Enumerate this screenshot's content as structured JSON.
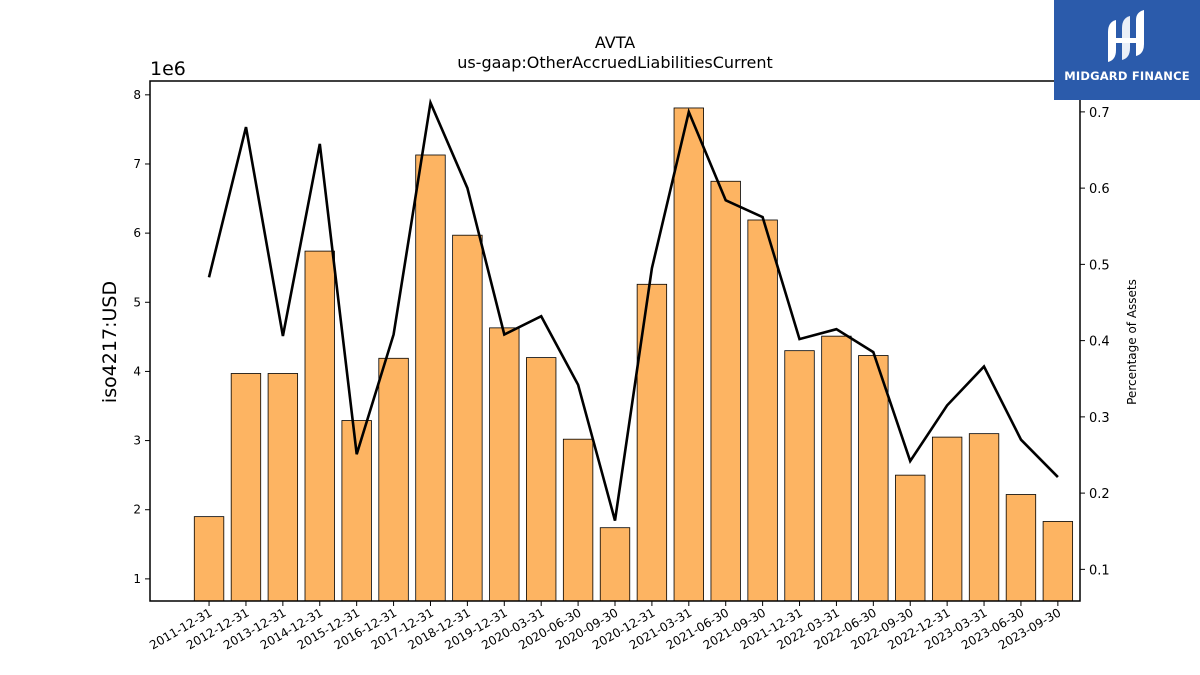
{
  "chart_data": {
    "type": "bar",
    "title": "AVTA",
    "subtitle": "us-gaap:OtherAccruedLiabilitiesCurrent",
    "ylabel": "iso4217:USD",
    "y_offset_label": "1e6",
    "y2label": "Percentage of Assets",
    "categories": [
      "2011-12-31",
      "2012-12-31",
      "2013-12-31",
      "2014-12-31",
      "2015-12-31",
      "2016-12-31",
      "2017-12-31",
      "2018-12-31",
      "2019-12-31",
      "2020-03-31",
      "2020-06-30",
      "2020-09-30",
      "2020-12-31",
      "2021-03-31",
      "2021-06-30",
      "2021-09-30",
      "2021-12-31",
      "2022-03-31",
      "2022-06-30",
      "2022-09-30",
      "2022-12-31",
      "2023-03-31",
      "2023-06-30",
      "2023-09-30"
    ],
    "series": [
      {
        "type": "bar",
        "axis": "left",
        "color": "#fdb462",
        "values": [
          1.9,
          3.97,
          3.97,
          5.74,
          3.29,
          4.19,
          7.13,
          5.97,
          4.63,
          4.2,
          3.02,
          1.74,
          5.26,
          7.81,
          6.75,
          6.19,
          4.3,
          4.51,
          4.23,
          2.5,
          3.05,
          3.1,
          2.22,
          1.83
        ]
      },
      {
        "type": "line",
        "axis": "right",
        "color": "#000000",
        "values": [
          0.483,
          0.68,
          0.406,
          0.658,
          0.251,
          0.408,
          0.712,
          0.6,
          0.408,
          0.432,
          0.342,
          0.164,
          0.495,
          0.7,
          0.584,
          0.562,
          0.402,
          0.415,
          0.385,
          0.242,
          0.315,
          0.366,
          0.27,
          0.221
        ]
      }
    ],
    "ylim": [
      0.68,
      8.2
    ],
    "y_ticks": [
      1,
      2,
      3,
      4,
      5,
      6,
      7,
      8
    ],
    "y2lim": [
      0.0585,
      0.7405
    ],
    "y2_ticks": [
      0.1,
      0.2,
      0.3,
      0.4,
      0.5,
      0.6,
      0.7
    ],
    "grid": false
  },
  "logo": {
    "text": "MIDGARD FINANCE",
    "bg_color": "#2b5bab"
  }
}
